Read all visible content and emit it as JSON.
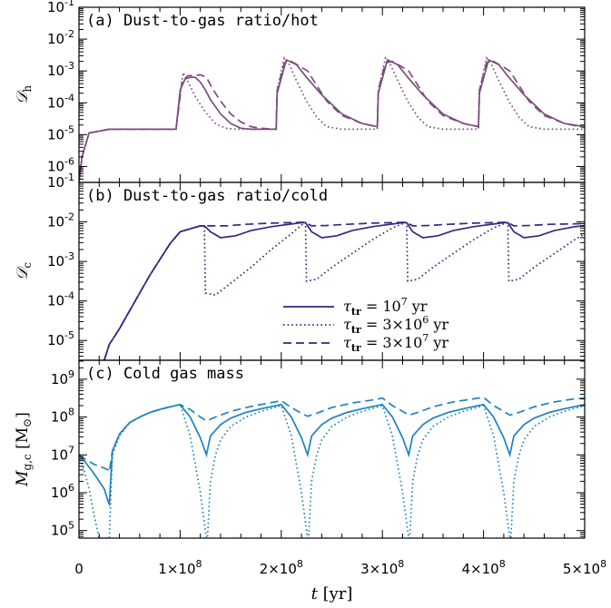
{
  "chart_data": [
    {
      "type": "line",
      "title": "(a) Dust-to-gas ratio/hot",
      "ylabel": "𝒟",
      "ylabel_sub": "h",
      "yscale": "log",
      "ylim_exp": [
        -6.5,
        -1
      ],
      "ytick_exps": [
        -6,
        -5,
        -4,
        -3,
        -2,
        -1
      ],
      "color": "#7a4e7e",
      "series": [
        {
          "style": "solid",
          "x": [
            0,
            0.3,
            1,
            3,
            9.5,
            9.6,
            10.0,
            10.5,
            11.0,
            11.5,
            12.0,
            12.5,
            13.0,
            14.0,
            15.0,
            16.0,
            17.0,
            18.0,
            19.0,
            19.5,
            19.6,
            20.5,
            21.5,
            22.5,
            24.0,
            26.0,
            28.0,
            29.5,
            29.6,
            30.5,
            31.5,
            32.5,
            34.0,
            36.0,
            38.0,
            39.5,
            39.6,
            40.5,
            41.5,
            42.5,
            44.0,
            46.0,
            48.0,
            50.0
          ],
          "y": [
            -6.5,
            -5.7,
            -4.95,
            -4.83,
            -4.83,
            -4.83,
            -3.6,
            -3.25,
            -3.2,
            -3.2,
            -3.35,
            -3.6,
            -3.9,
            -4.35,
            -4.65,
            -4.8,
            -4.83,
            -4.83,
            -4.83,
            -4.83,
            -3.7,
            -2.65,
            -2.8,
            -3.2,
            -3.75,
            -4.35,
            -4.65,
            -4.75,
            -3.7,
            -2.65,
            -2.8,
            -3.2,
            -3.75,
            -4.35,
            -4.65,
            -4.75,
            -3.7,
            -2.65,
            -2.8,
            -3.2,
            -3.75,
            -4.35,
            -4.65,
            -4.75
          ]
        },
        {
          "style": "dotted",
          "x": [
            0,
            0.3,
            1,
            3,
            9.5,
            9.6,
            10.3,
            10.8,
            11.5,
            12.5,
            13.5,
            14.5,
            15.5,
            17.0,
            18.5,
            19.5,
            19.6,
            20.3,
            20.8,
            21.5,
            22.5,
            23.5,
            24.5,
            26.0,
            28.0,
            29.5,
            29.6,
            30.3,
            30.8,
            31.5,
            32.5,
            33.5,
            34.5,
            36.0,
            38.0,
            39.5,
            39.6,
            40.3,
            40.8,
            41.5,
            42.5,
            43.5,
            44.5,
            46.0,
            48.0,
            50.0
          ],
          "y": [
            -6.5,
            -5.7,
            -4.95,
            -4.83,
            -4.83,
            -4.83,
            -3.05,
            -3.35,
            -3.8,
            -4.3,
            -4.65,
            -4.8,
            -4.83,
            -4.83,
            -4.83,
            -4.83,
            -3.6,
            -2.6,
            -2.8,
            -3.3,
            -3.95,
            -4.45,
            -4.75,
            -4.83,
            -4.83,
            -4.83,
            -3.6,
            -2.6,
            -2.8,
            -3.3,
            -3.95,
            -4.45,
            -4.75,
            -4.83,
            -4.83,
            -4.83,
            -3.6,
            -2.6,
            -2.8,
            -3.3,
            -3.95,
            -4.45,
            -4.75,
            -4.83,
            -4.83,
            -4.83
          ]
        },
        {
          "style": "dashed",
          "x": [
            0,
            0.3,
            1,
            3,
            9.5,
            9.6,
            10.2,
            10.8,
            11.5,
            12.0,
            12.6,
            13.2,
            14.0,
            15.0,
            16.0,
            17.0,
            18.0,
            19.5,
            19.6,
            20.3,
            21.0,
            21.8,
            22.6,
            23.5,
            24.5,
            26.0,
            28.0,
            29.5,
            29.6,
            30.3,
            31.0,
            31.8,
            32.6,
            33.5,
            34.5,
            36.0,
            38.0,
            39.5,
            39.6,
            40.3,
            41.0,
            41.8,
            42.6,
            43.5,
            44.5,
            46.0,
            48.0,
            50.0
          ],
          "y": [
            -6.5,
            -5.7,
            -4.95,
            -4.83,
            -4.83,
            -4.83,
            -3.3,
            -3.15,
            -3.15,
            -3.12,
            -3.2,
            -3.55,
            -3.95,
            -4.35,
            -4.6,
            -4.75,
            -4.8,
            -4.83,
            -3.6,
            -2.75,
            -2.7,
            -2.85,
            -3.0,
            -3.45,
            -3.95,
            -4.4,
            -4.65,
            -4.75,
            -3.6,
            -2.75,
            -2.7,
            -2.85,
            -3.0,
            -3.45,
            -3.95,
            -4.4,
            -4.65,
            -4.75,
            -3.6,
            -2.75,
            -2.7,
            -2.85,
            -3.0,
            -3.45,
            -3.95,
            -4.4,
            -4.65,
            -4.78
          ]
        }
      ]
    },
    {
      "type": "line",
      "title": "(b) Dust-to-gas ratio/cold",
      "ylabel": "𝒟",
      "ylabel_sub": "c",
      "yscale": "log",
      "ylim_exp": [
        -5.5,
        -1
      ],
      "ytick_exps": [
        -5,
        -4,
        -3,
        -2,
        -1
      ],
      "color": "#2e2a85",
      "legend": {
        "placement": "center-right",
        "entries": [
          {
            "style": "solid",
            "label": "τ",
            "sub": "tr",
            "rest": " = 10",
            "sup": "7",
            "tail": " yr"
          },
          {
            "style": "dotted",
            "label": "τ",
            "sub": "tr",
            "rest": " = 3×10",
            "sup": "6",
            "tail": " yr"
          },
          {
            "style": "dashed",
            "label": "τ",
            "sub": "tr",
            "rest": " = 3×10",
            "sup": "7",
            "tail": " yr"
          }
        ]
      },
      "series": [
        {
          "style": "solid",
          "x": [
            2.5,
            3.0,
            4.0,
            5.0,
            6.0,
            7.0,
            8.0,
            9.0,
            10.0,
            12.0,
            12.4,
            13.0,
            14.0,
            15.5,
            17.0,
            19.0,
            22.0,
            22.4,
            23.0,
            24.0,
            25.5,
            27.0,
            29.0,
            32.0,
            32.4,
            33.0,
            34.0,
            35.5,
            37.0,
            39.0,
            42.0,
            42.4,
            43.0,
            44.0,
            45.5,
            47.0,
            49.0,
            50.0
          ],
          "y": [
            -5.5,
            -5.1,
            -4.7,
            -4.25,
            -3.8,
            -3.35,
            -2.95,
            -2.55,
            -2.25,
            -2.1,
            -2.1,
            -2.25,
            -2.4,
            -2.35,
            -2.22,
            -2.12,
            -2.02,
            -2.02,
            -2.25,
            -2.4,
            -2.35,
            -2.22,
            -2.12,
            -2.02,
            -2.02,
            -2.25,
            -2.4,
            -2.35,
            -2.22,
            -2.12,
            -2.02,
            -2.02,
            -2.25,
            -2.4,
            -2.35,
            -2.22,
            -2.12,
            -2.1
          ]
        },
        {
          "style": "dotted",
          "x": [
            2.5,
            3.0,
            4.0,
            5.0,
            6.0,
            7.0,
            8.0,
            9.0,
            10.0,
            12.0,
            12.4,
            12.5,
            13.5,
            15.0,
            17.0,
            19.0,
            21.0,
            22.3,
            22.4,
            22.5,
            23.5,
            25.0,
            27.0,
            29.0,
            31.0,
            32.3,
            32.4,
            32.5,
            33.5,
            35.0,
            37.0,
            39.0,
            41.0,
            42.3,
            42.4,
            42.5,
            43.5,
            45.0,
            47.0,
            49.0,
            50.0
          ],
          "y": [
            -5.5,
            -5.1,
            -4.7,
            -4.25,
            -3.8,
            -3.35,
            -2.95,
            -2.55,
            -2.25,
            -2.1,
            -2.1,
            -3.8,
            -3.85,
            -3.55,
            -3.15,
            -2.7,
            -2.3,
            -2.02,
            -2.02,
            -3.5,
            -3.45,
            -3.15,
            -2.8,
            -2.45,
            -2.15,
            -2.02,
            -2.02,
            -3.5,
            -3.45,
            -3.15,
            -2.8,
            -2.45,
            -2.15,
            -2.02,
            -2.02,
            -3.5,
            -3.45,
            -3.15,
            -2.8,
            -2.45,
            -2.3
          ]
        },
        {
          "style": "dashed",
          "x": [
            2.5,
            3.0,
            4.0,
            5.0,
            6.0,
            7.0,
            8.0,
            9.0,
            10.0,
            12.0,
            12.4,
            13.0,
            14.5,
            16.5,
            19.0,
            22.0,
            22.4,
            23.0,
            24.5,
            26.5,
            29.0,
            32.0,
            32.4,
            33.0,
            34.5,
            36.5,
            39.0,
            42.0,
            42.4,
            43.0,
            44.5,
            46.5,
            49.0,
            50.0
          ],
          "y": [
            -5.5,
            -5.1,
            -4.7,
            -4.25,
            -3.8,
            -3.35,
            -2.95,
            -2.55,
            -2.25,
            -2.1,
            -2.1,
            -2.1,
            -2.1,
            -2.06,
            -2.03,
            -2.01,
            -2.01,
            -2.1,
            -2.09,
            -2.06,
            -2.03,
            -2.01,
            -2.01,
            -2.1,
            -2.09,
            -2.06,
            -2.03,
            -2.01,
            -2.01,
            -2.1,
            -2.09,
            -2.06,
            -2.05,
            -2.04
          ]
        }
      ]
    },
    {
      "type": "line",
      "title": "(c) Cold gas mass",
      "ylabel": "M",
      "ylabel_sub": "g,c",
      "ylabel_unit": "[M",
      "ylabel_unit_sub": "⊙",
      "ylabel_unit_end": "]",
      "yscale": "log",
      "ylim_exp": [
        4.8,
        9.5
      ],
      "ytick_exps": [
        5,
        6,
        7,
        8,
        9
      ],
      "color": "#1f82c0",
      "series": [
        {
          "style": "solid",
          "x": [
            0,
            0.5,
            1.5,
            2.5,
            2.9,
            3.0,
            3.3,
            4.0,
            5.0,
            6.0,
            7.0,
            8.0,
            9.0,
            10.0,
            11.0,
            12.0,
            12.6,
            13.0,
            14.0,
            15.0,
            16.5,
            18.0,
            20.0,
            21.0,
            22.0,
            22.6,
            23.0,
            24.0,
            25.0,
            26.5,
            28.0,
            30.0,
            31.0,
            32.0,
            32.6,
            33.0,
            34.0,
            35.0,
            36.5,
            38.0,
            40.0,
            41.0,
            42.0,
            42.6,
            43.0,
            44.0,
            45.0,
            46.5,
            48.0,
            50.0
          ],
          "y": [
            7.0,
            6.85,
            6.5,
            6.1,
            5.75,
            5.7,
            7.1,
            7.55,
            7.85,
            8.0,
            8.12,
            8.2,
            8.27,
            8.33,
            8.0,
            7.45,
            7.0,
            7.5,
            7.8,
            7.97,
            8.12,
            8.22,
            8.33,
            8.0,
            7.45,
            7.0,
            7.5,
            7.8,
            7.97,
            8.12,
            8.22,
            8.33,
            8.0,
            7.45,
            7.0,
            7.5,
            7.8,
            7.97,
            8.12,
            8.22,
            8.33,
            8.0,
            7.45,
            7.0,
            7.5,
            7.8,
            7.97,
            8.12,
            8.22,
            8.33
          ]
        },
        {
          "style": "dotted",
          "x": [
            0,
            0.5,
            1.0,
            1.5,
            2.0,
            2.9,
            3.0,
            3.3,
            4.0,
            5.0,
            6.0,
            7.0,
            8.0,
            9.0,
            10.0,
            11.0,
            12.0,
            12.6,
            12.7,
            13.0,
            13.5,
            14.0,
            15.0,
            16.5,
            18.0,
            20.0,
            21.0,
            22.0,
            22.6,
            22.7,
            23.0,
            23.5,
            24.0,
            25.0,
            26.5,
            28.0,
            30.0,
            31.0,
            32.0,
            32.6,
            32.7,
            33.0,
            33.5,
            34.0,
            35.0,
            36.5,
            38.0,
            40.0,
            41.0,
            42.0,
            42.6,
            42.7,
            43.0,
            43.5,
            44.0,
            45.0,
            46.5,
            48.0,
            50.0
          ],
          "y": [
            7.0,
            6.6,
            6.1,
            5.4,
            4.8,
            4.8,
            4.8,
            7.0,
            7.5,
            7.85,
            8.0,
            8.12,
            8.2,
            8.27,
            8.33,
            7.5,
            6.0,
            4.8,
            4.8,
            6.3,
            7.0,
            7.4,
            7.75,
            8.0,
            8.15,
            8.3,
            7.5,
            6.0,
            4.8,
            4.8,
            6.3,
            7.0,
            7.4,
            7.75,
            8.0,
            8.15,
            8.3,
            7.5,
            6.0,
            4.8,
            4.8,
            6.3,
            7.0,
            7.4,
            7.75,
            8.0,
            8.15,
            8.3,
            7.5,
            6.0,
            4.8,
            4.8,
            6.3,
            7.0,
            7.4,
            7.75,
            8.0,
            8.15,
            8.3
          ]
        },
        {
          "style": "dashed",
          "x": [
            0,
            0.5,
            1.5,
            2.5,
            2.9,
            3.0,
            3.3,
            4.0,
            5.0,
            6.0,
            7.0,
            8.0,
            9.0,
            10.0,
            11.0,
            12.0,
            12.6,
            13.5,
            15.0,
            17.0,
            19.0,
            20.0,
            21.0,
            22.0,
            22.6,
            23.5,
            25.0,
            27.0,
            29.0,
            30.0,
            31.0,
            32.0,
            32.6,
            33.5,
            35.0,
            37.0,
            39.0,
            40.0,
            41.0,
            42.0,
            42.6,
            43.5,
            45.0,
            47.0,
            49.0,
            50.0
          ],
          "y": [
            7.0,
            6.9,
            6.75,
            6.65,
            6.6,
            6.55,
            7.1,
            7.55,
            7.85,
            8.0,
            8.12,
            8.2,
            8.27,
            8.33,
            8.2,
            8.0,
            7.9,
            8.0,
            8.15,
            8.28,
            8.38,
            8.43,
            8.25,
            8.1,
            8.02,
            8.1,
            8.25,
            8.37,
            8.45,
            8.5,
            8.3,
            8.15,
            8.05,
            8.12,
            8.27,
            8.4,
            8.48,
            8.52,
            8.3,
            8.15,
            8.05,
            8.12,
            8.27,
            8.4,
            8.48,
            8.5
          ]
        }
      ]
    }
  ],
  "x_axis": {
    "label": "t",
    "unit": "[yr]",
    "ticks": [
      {
        "value": 0,
        "base": "0",
        "exp": ""
      },
      {
        "value": 10,
        "base": "1×10",
        "exp": "8"
      },
      {
        "value": 20,
        "base": "2×10",
        "exp": "8"
      },
      {
        "value": 30,
        "base": "3×10",
        "exp": "8"
      },
      {
        "value": 40,
        "base": "4×10",
        "exp": "8"
      },
      {
        "value": 50,
        "base": "5×10",
        "exp": "8"
      }
    ],
    "xlim": [
      0,
      50
    ],
    "units_note": "x values in units of 10^7 yr"
  }
}
